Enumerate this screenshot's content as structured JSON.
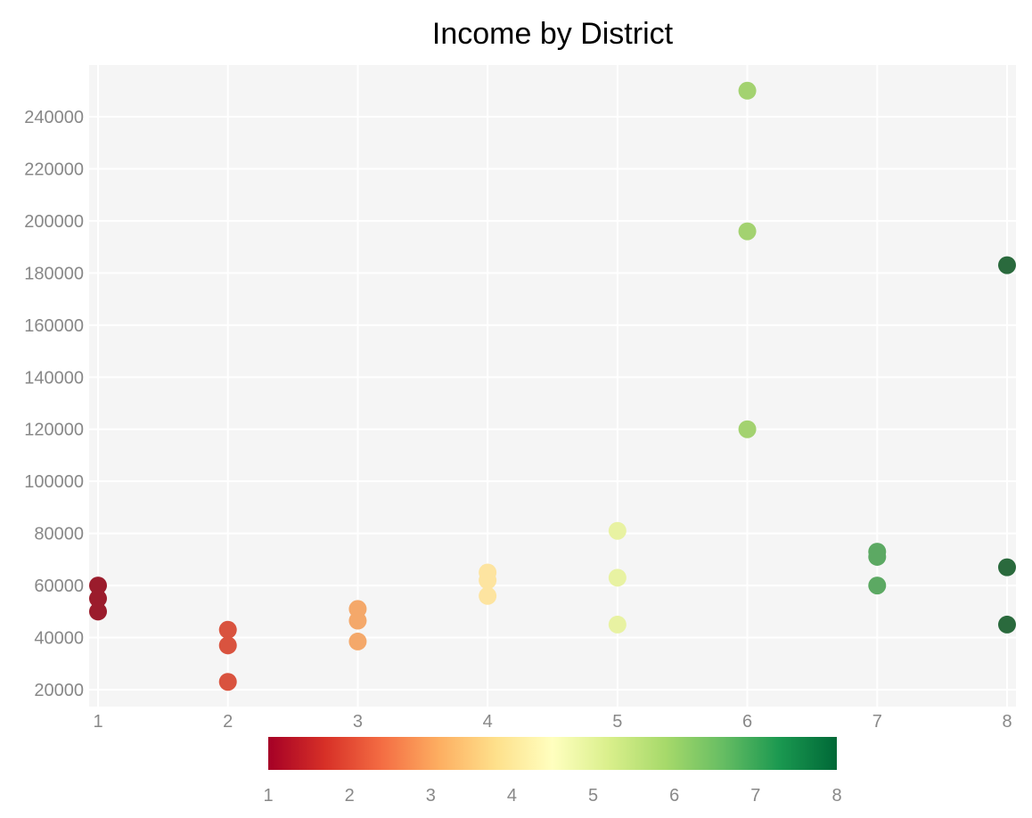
{
  "chart_data": {
    "type": "scatter",
    "title": "Income by District",
    "xlabel": "",
    "ylabel": "",
    "xlim": [
      1,
      8
    ],
    "ylim": [
      16000,
      254000
    ],
    "x_ticks": [
      1,
      2,
      3,
      4,
      5,
      6,
      7,
      8
    ],
    "y_ticks": [
      20000,
      40000,
      60000,
      80000,
      100000,
      120000,
      140000,
      160000,
      180000,
      200000,
      220000,
      240000
    ],
    "grid": true,
    "legend": "none",
    "colorbar": {
      "placement": "bottom",
      "range": [
        1,
        8
      ],
      "ticks": [
        1,
        2,
        3,
        4,
        5,
        6,
        7,
        8
      ],
      "colorscale": [
        "#a50026",
        "#d73027",
        "#f46d43",
        "#fdae61",
        "#fee08b",
        "#ffffbf",
        "#d9ef8b",
        "#a6d96a",
        "#66bd63",
        "#1a9850",
        "#006837"
      ]
    },
    "points": [
      {
        "x": 1,
        "y": 60000,
        "color": "#9b1c2c"
      },
      {
        "x": 1,
        "y": 55000,
        "color": "#9b1c2c"
      },
      {
        "x": 1,
        "y": 50000,
        "color": "#9b1c2c"
      },
      {
        "x": 2,
        "y": 43000,
        "color": "#d9533f"
      },
      {
        "x": 2,
        "y": 37000,
        "color": "#d9533f"
      },
      {
        "x": 2,
        "y": 23000,
        "color": "#d9533f"
      },
      {
        "x": 3,
        "y": 51000,
        "color": "#f4a86a"
      },
      {
        "x": 3,
        "y": 46500,
        "color": "#f4a86a"
      },
      {
        "x": 3,
        "y": 38500,
        "color": "#f4a86a"
      },
      {
        "x": 4,
        "y": 65000,
        "color": "#fde4a0"
      },
      {
        "x": 4,
        "y": 62000,
        "color": "#fde4a0"
      },
      {
        "x": 4,
        "y": 56000,
        "color": "#fde4a0"
      },
      {
        "x": 5,
        "y": 81000,
        "color": "#e8f2a2"
      },
      {
        "x": 5,
        "y": 63000,
        "color": "#e8f2a2"
      },
      {
        "x": 5,
        "y": 45000,
        "color": "#e8f2a2"
      },
      {
        "x": 6,
        "y": 250000,
        "color": "#a3d270"
      },
      {
        "x": 6,
        "y": 196000,
        "color": "#a3d270"
      },
      {
        "x": 6,
        "y": 120000,
        "color": "#a3d270"
      },
      {
        "x": 7,
        "y": 73000,
        "color": "#5ca963"
      },
      {
        "x": 7,
        "y": 71000,
        "color": "#5ca963"
      },
      {
        "x": 7,
        "y": 60000,
        "color": "#5ca963"
      },
      {
        "x": 8,
        "y": 183000,
        "color": "#2a6a3d"
      },
      {
        "x": 8,
        "y": 67000,
        "color": "#2a6a3d"
      },
      {
        "x": 8,
        "y": 45000,
        "color": "#2a6a3d"
      }
    ],
    "colors": {
      "plot_background": "#f5f5f5",
      "grid": "#ffffff",
      "tick_text": "#888888",
      "title_text": "#000000"
    }
  }
}
